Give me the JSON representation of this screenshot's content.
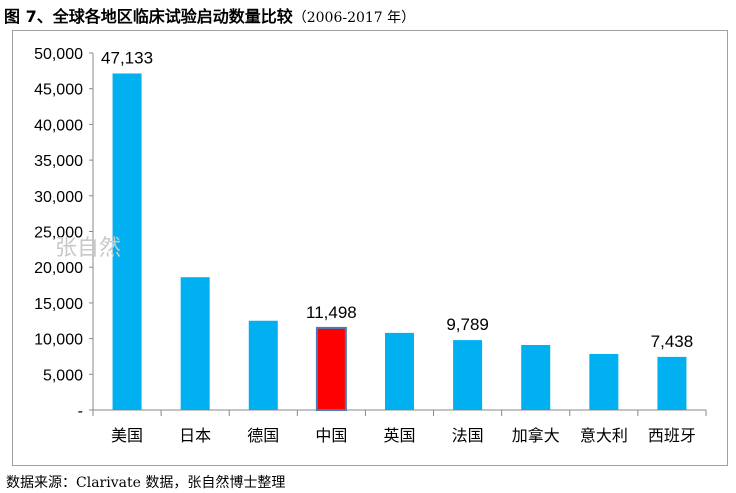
{
  "title": {
    "main": "图 7、全球各地区临床试验启动数量比较",
    "sub": "（2006-2017 年）"
  },
  "watermark": "张自然",
  "source": "数据来源：Clarivate 数据，张自然博士整理",
  "chart_data": {
    "type": "bar",
    "categories": [
      "美国",
      "日本",
      "德国",
      "中国",
      "英国",
      "法国",
      "加拿大",
      "意大利",
      "西班牙"
    ],
    "values": [
      47133,
      18600,
      12500,
      11498,
      10800,
      9789,
      9100,
      7850,
      7438
    ],
    "data_labels": [
      "47,133",
      "",
      "",
      "11,498",
      "",
      "9,789",
      "",
      "",
      "7,438"
    ],
    "yticks": [
      "-",
      "5,000",
      "10,000",
      "15,000",
      "20,000",
      "25,000",
      "30,000",
      "35,000",
      "40,000",
      "45,000",
      "50,000"
    ],
    "ylim": [
      0,
      50000
    ],
    "grid": false,
    "colors": {
      "default": "#00b0f0",
      "highlight": "#ff0000",
      "highlight_border": "#4a7ab8"
    },
    "highlight_category": "中国"
  }
}
